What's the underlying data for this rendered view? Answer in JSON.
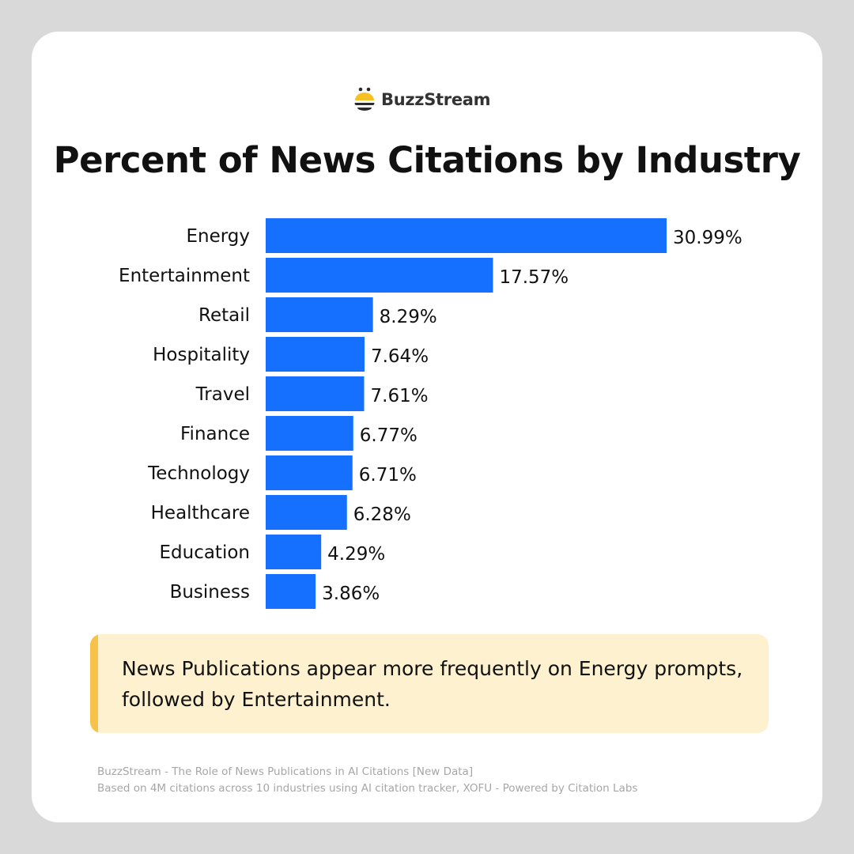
{
  "brand": {
    "name": "BuzzStream",
    "logo_colors": {
      "top": "#f7c024",
      "stripes": "#2b2b2b"
    }
  },
  "title": "Percent of News Citations by Industry",
  "chart_data": {
    "type": "bar",
    "orientation": "horizontal",
    "title": "Percent of News Citations by Industry",
    "categories": [
      "Energy",
      "Entertainment",
      "Retail",
      "Hospitality",
      "Travel",
      "Finance",
      "Technology",
      "Healthcare",
      "Education",
      "Business"
    ],
    "values": [
      30.99,
      17.57,
      8.29,
      7.64,
      7.61,
      6.77,
      6.71,
      6.28,
      4.29,
      3.86
    ],
    "data_labels": [
      "30.99%",
      "17.57%",
      "8.29%",
      "7.64%",
      "7.61%",
      "6.77%",
      "6.71%",
      "6.28%",
      "4.29%",
      "3.86%"
    ],
    "unit": "%",
    "bar_color": "#1570ff",
    "grid": false,
    "xlabel": "",
    "ylabel": ""
  },
  "callout": {
    "text": "News Publications appear more frequently on Energy prompts, followed by Entertainment.",
    "bg_color": "#fdf1cf",
    "accent_color": "#f7c24a"
  },
  "footer": {
    "line1": "BuzzStream - The Role of News Publications in AI Citations [New Data]",
    "line2": "Based on 4M citations across 10 industries using AI citation tracker, XOFU - Powered by Citation Labs"
  }
}
